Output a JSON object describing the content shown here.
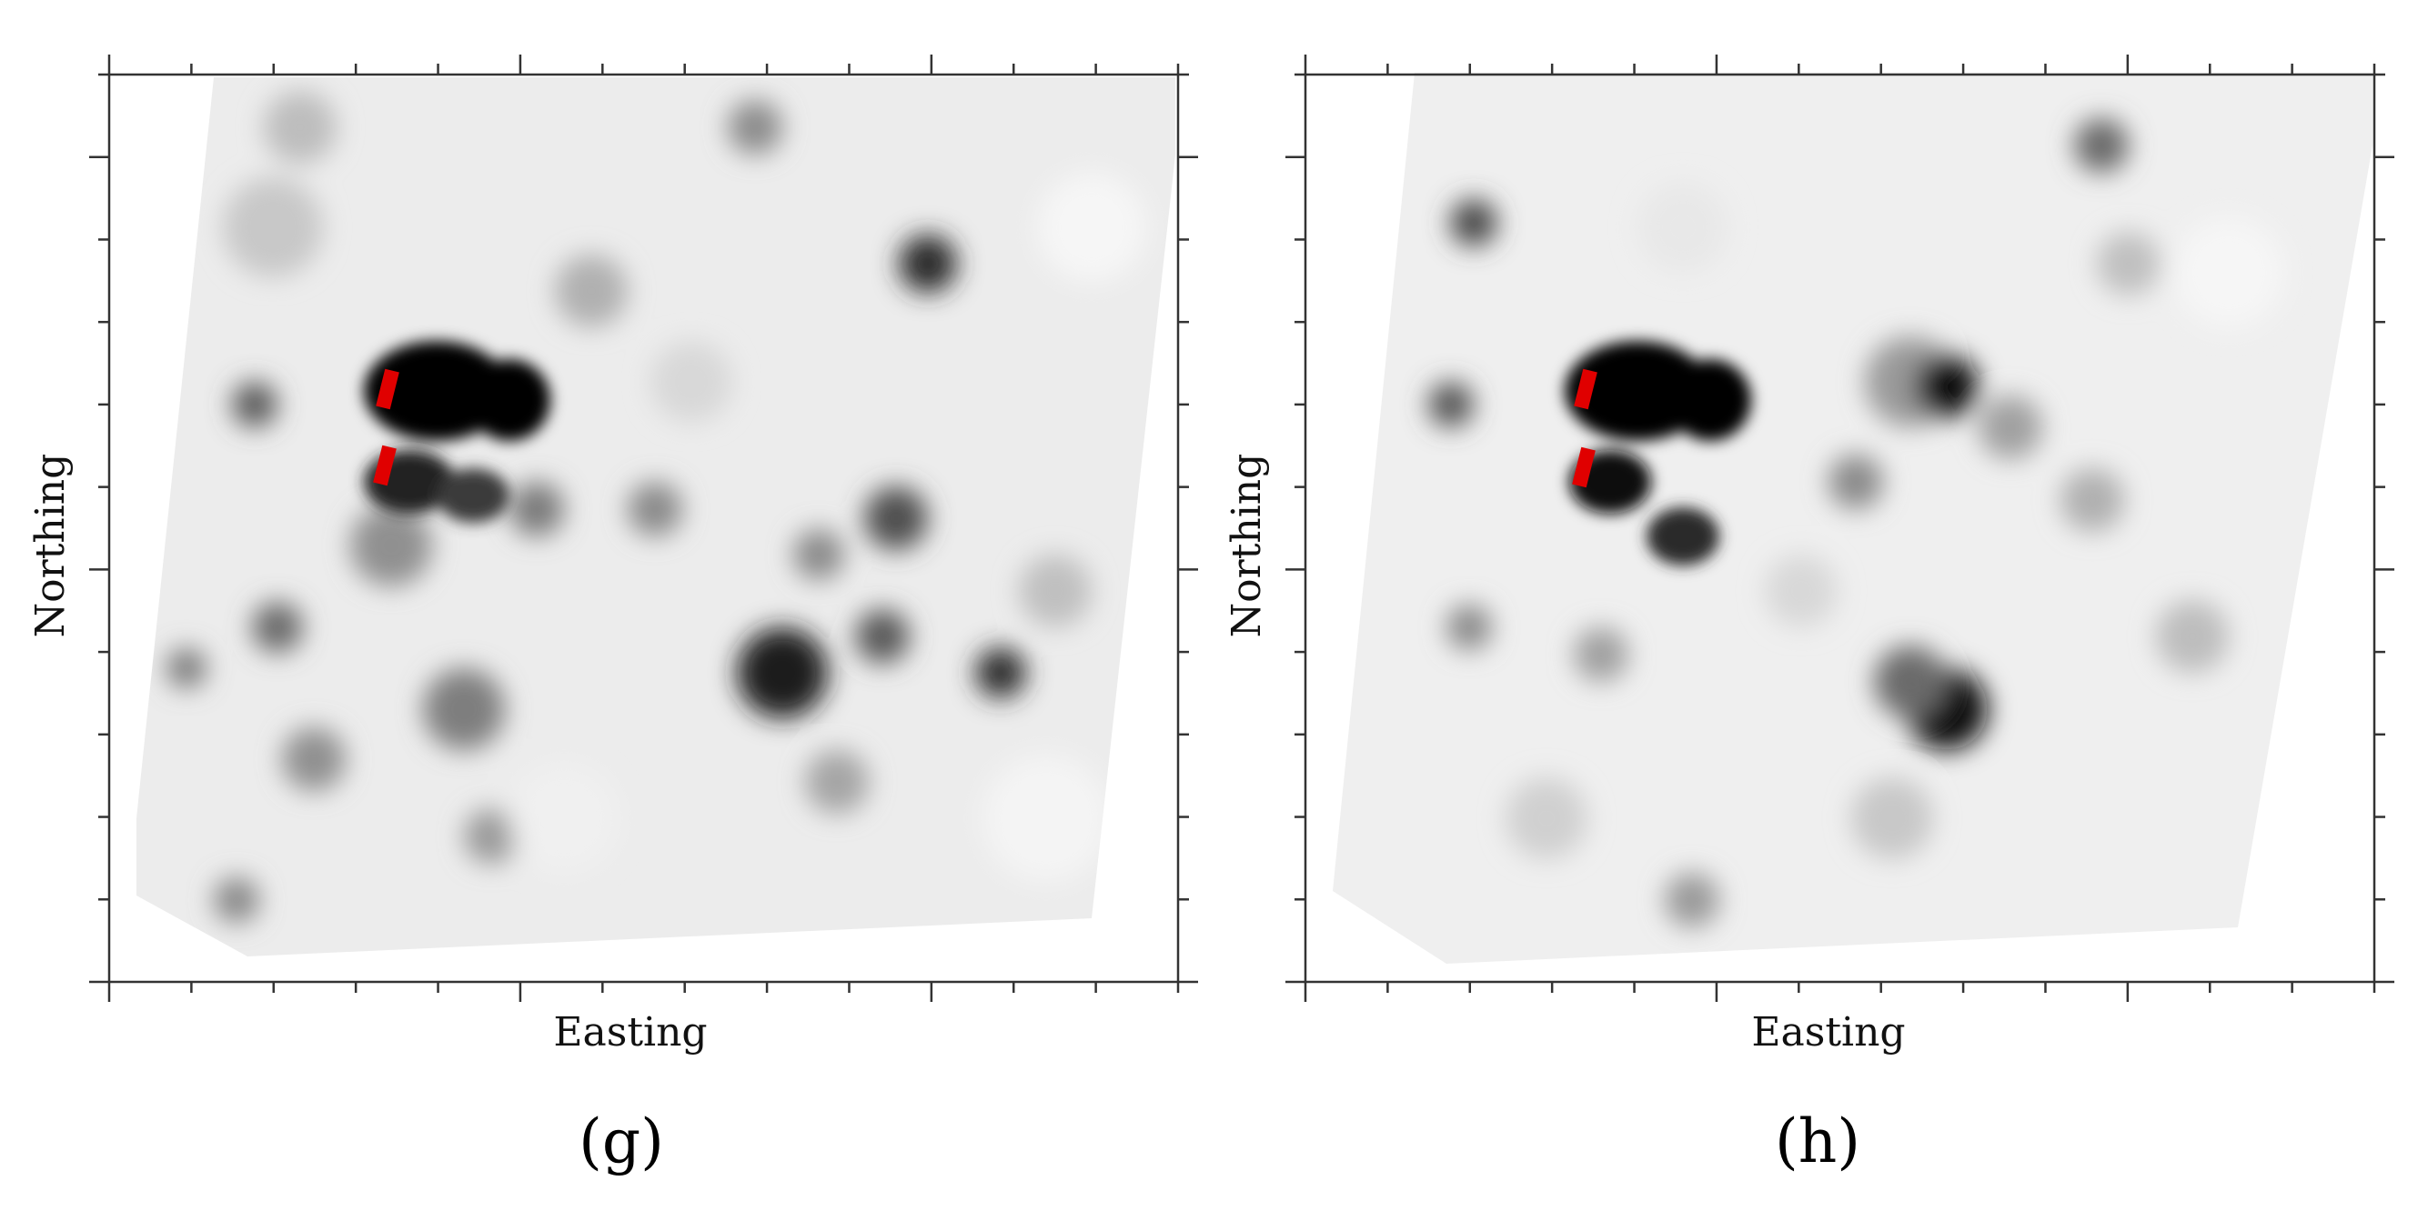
{
  "figure": {
    "panels": [
      {
        "panel_label": "(g)",
        "xlabel": "Easting",
        "ylabel": "Northing"
      },
      {
        "panel_label": "(h)",
        "xlabel": "Easting",
        "ylabel": "Northing"
      }
    ]
  },
  "chart_data": [
    {
      "type": "heatmap",
      "title": "",
      "xlabel": "Easting",
      "ylabel": "Northing",
      "tick_labels": "none",
      "grid": false,
      "legend": "none",
      "colormap": "grayscale (white = low, black = high)",
      "colors": {
        "background": "#ffffff",
        "high": "#000000",
        "low": "#f5f5f5",
        "marker": "#e00000"
      },
      "annotations": [
        "two red rectangular markers on the left side of the main dark anomaly"
      ]
    },
    {
      "type": "heatmap",
      "title": "",
      "xlabel": "Easting",
      "ylabel": "Northing",
      "tick_labels": "none",
      "grid": false,
      "legend": "none",
      "colormap": "grayscale (white = low, black = high)",
      "colors": {
        "background": "#ffffff",
        "high": "#000000",
        "low": "#f5f5f5",
        "marker": "#e00000"
      },
      "annotations": [
        "two red rectangular markers on the left side of the main dark anomaly"
      ]
    }
  ]
}
